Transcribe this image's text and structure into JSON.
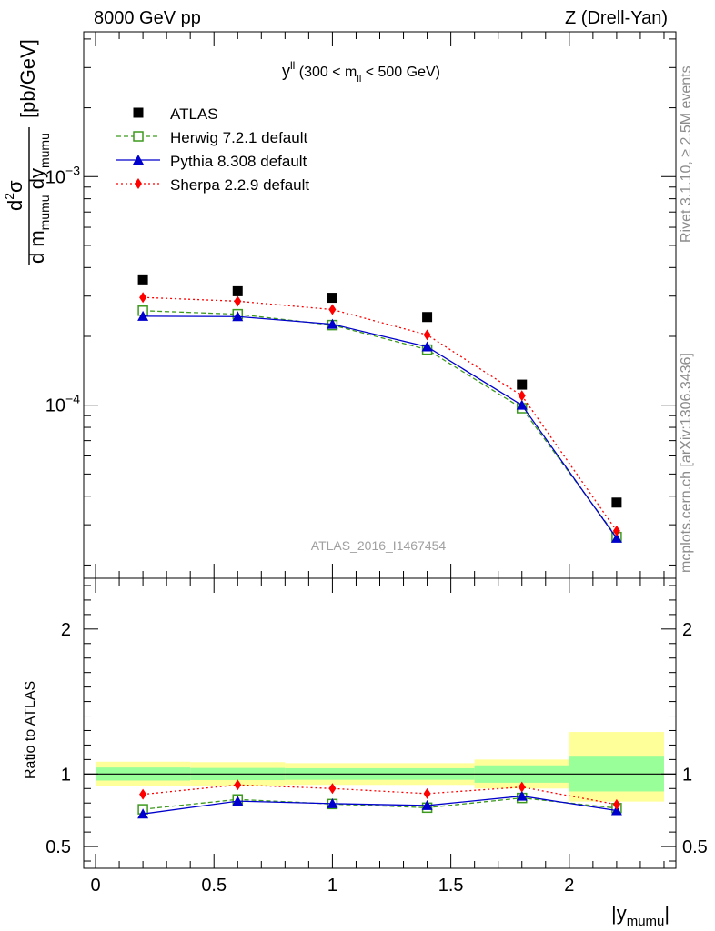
{
  "header": {
    "left": "8000 GeV pp",
    "right": "Z (Drell-Yan)"
  },
  "side_labels": {
    "rivet": "Rivet 3.1.10, ≥ 2.5M events",
    "mcplots": "mcplots.cern.ch [arXiv:1306.3436]"
  },
  "colors": {
    "atlas": "#000000",
    "herwig": "#3d9a1f",
    "pythia": "#0000cc",
    "sherpa": "#ff0000",
    "band_inner": "#99ff99",
    "band_outer": "#ffff99"
  },
  "chart_data": [
    {
      "type": "scatter",
      "panel": "main",
      "title": "y^ll (300 < m_ll < 500 GeV)",
      "title_parts": {
        "main": "y",
        "sup": "ll",
        "pre": " (300 < m",
        "sub": "ll",
        "post": " < 500 GeV)"
      },
      "ylabel": "d²σ / d m_mumu dy_mumu [pb/GeV]",
      "ylabel_parts": {
        "num": "d",
        "num_sup": "2",
        "num_rest": "σ",
        "den": "d m",
        "den_sub": "mumu",
        "den_mid": " dy",
        "den_sub2": "mumu",
        "unit": "[pb/GeV]"
      },
      "yscale": "log",
      "ylim": [
        1.75e-05,
        0.0043
      ],
      "xlim": [
        -0.05,
        2.45
      ],
      "yticks_major": [
        {
          "v": 0.0001,
          "base": "10",
          "exp": "−4"
        },
        {
          "v": 0.001,
          "base": "10",
          "exp": "−3"
        }
      ],
      "watermark": "ATLAS_2016_I1467454",
      "legend_position": "top-left",
      "x": [
        0.2,
        0.6,
        1.0,
        1.4,
        1.8,
        2.2
      ],
      "series": [
        {
          "name": "ATLAS",
          "values": [
            0.000355,
            0.000315,
            0.000295,
            0.000243,
            0.000123,
            3.75e-05
          ],
          "marker": "square-filled",
          "line": "none"
        },
        {
          "name": "Herwig 7.2.1 default",
          "values": [
            0.000259,
            0.00025,
            0.000224,
            0.000175,
            9.7e-05,
            2.65e-05
          ],
          "marker": "square-open",
          "line": "dashed"
        },
        {
          "name": "Pythia 8.308 default",
          "values": [
            0.000245,
            0.000244,
            0.000226,
            0.00018,
            0.0001,
            2.62e-05
          ],
          "marker": "triangle",
          "line": "solid"
        },
        {
          "name": "Sherpa 2.2.9 default",
          "values": [
            0.000296,
            0.000285,
            0.000262,
            0.000203,
            0.00011,
            2.82e-05
          ],
          "marker": "diamond",
          "line": "dotted"
        }
      ]
    },
    {
      "type": "scatter",
      "panel": "ratio",
      "ylabel": "Ratio to ATLAS",
      "xlabel": "|y_mumu|",
      "xlabel_parts": {
        "main": "|y",
        "sub": "mumu",
        "post": "|"
      },
      "ylim": [
        0.35,
        2.35
      ],
      "xlim": [
        -0.05,
        2.45
      ],
      "xticks": [
        "0",
        "0.5",
        "1",
        "1.5",
        "2"
      ],
      "xtick_values": [
        0,
        0.5,
        1,
        1.5,
        2
      ],
      "yticks": [
        "0.5",
        "1",
        "2"
      ],
      "ytick_values": [
        0.5,
        1,
        2
      ],
      "bins": [
        [
          0.0,
          0.4
        ],
        [
          0.4,
          0.8
        ],
        [
          0.8,
          1.2
        ],
        [
          1.2,
          1.6
        ],
        [
          1.6,
          2.0
        ],
        [
          2.0,
          2.4
        ]
      ],
      "band_inner": [
        [
          0.955,
          1.045
        ],
        [
          0.958,
          1.042
        ],
        [
          0.96,
          1.04
        ],
        [
          0.96,
          1.04
        ],
        [
          0.94,
          1.06
        ],
        [
          0.88,
          1.12
        ]
      ],
      "band_outer": [
        [
          0.915,
          1.085
        ],
        [
          0.918,
          1.082
        ],
        [
          0.925,
          1.075
        ],
        [
          0.925,
          1.075
        ],
        [
          0.9,
          1.1
        ],
        [
          0.81,
          1.29
        ]
      ],
      "x": [
        0.2,
        0.6,
        1.0,
        1.4,
        1.8,
        2.2
      ],
      "series": [
        {
          "name": "Herwig 7.2.1 default",
          "values": [
            0.757,
            0.825,
            0.793,
            0.768,
            0.835,
            0.765
          ]
        },
        {
          "name": "Pythia 8.308 default",
          "values": [
            0.725,
            0.813,
            0.796,
            0.783,
            0.848,
            0.748
          ]
        },
        {
          "name": "Sherpa 2.2.9 default",
          "values": [
            0.86,
            0.925,
            0.9,
            0.865,
            0.91,
            0.79
          ]
        }
      ]
    }
  ]
}
